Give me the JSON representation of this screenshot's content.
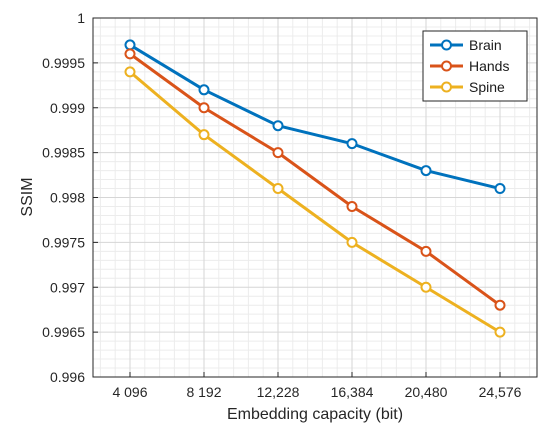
{
  "chart_data": {
    "type": "line",
    "title": "",
    "xlabel": "Embedding capacity (bit)",
    "ylabel": "SSIM",
    "categories": [
      "4 096",
      "8 192",
      "12,228",
      "16,384",
      "20,480",
      "24,576"
    ],
    "ylim": [
      0.996,
      1
    ],
    "yticks": [
      "0.996",
      "0.9965",
      "0.997",
      "0.9975",
      "0.998",
      "0.9985",
      "0.999",
      "0.9995",
      "1"
    ],
    "grid": true,
    "minor_grid": true,
    "legend": "top-right",
    "series": [
      {
        "name": "Brain",
        "color": "#0072BD",
        "values": [
          0.9997,
          0.9992,
          0.9988,
          0.9986,
          0.9983,
          0.9981
        ]
      },
      {
        "name": "Hands",
        "color": "#D95319",
        "values": [
          0.9996,
          0.999,
          0.9985,
          0.9979,
          0.9974,
          0.9968
        ]
      },
      {
        "name": "Spine",
        "color": "#EDB120",
        "values": [
          0.9994,
          0.9987,
          0.9981,
          0.9975,
          0.997,
          0.9965
        ]
      }
    ]
  }
}
